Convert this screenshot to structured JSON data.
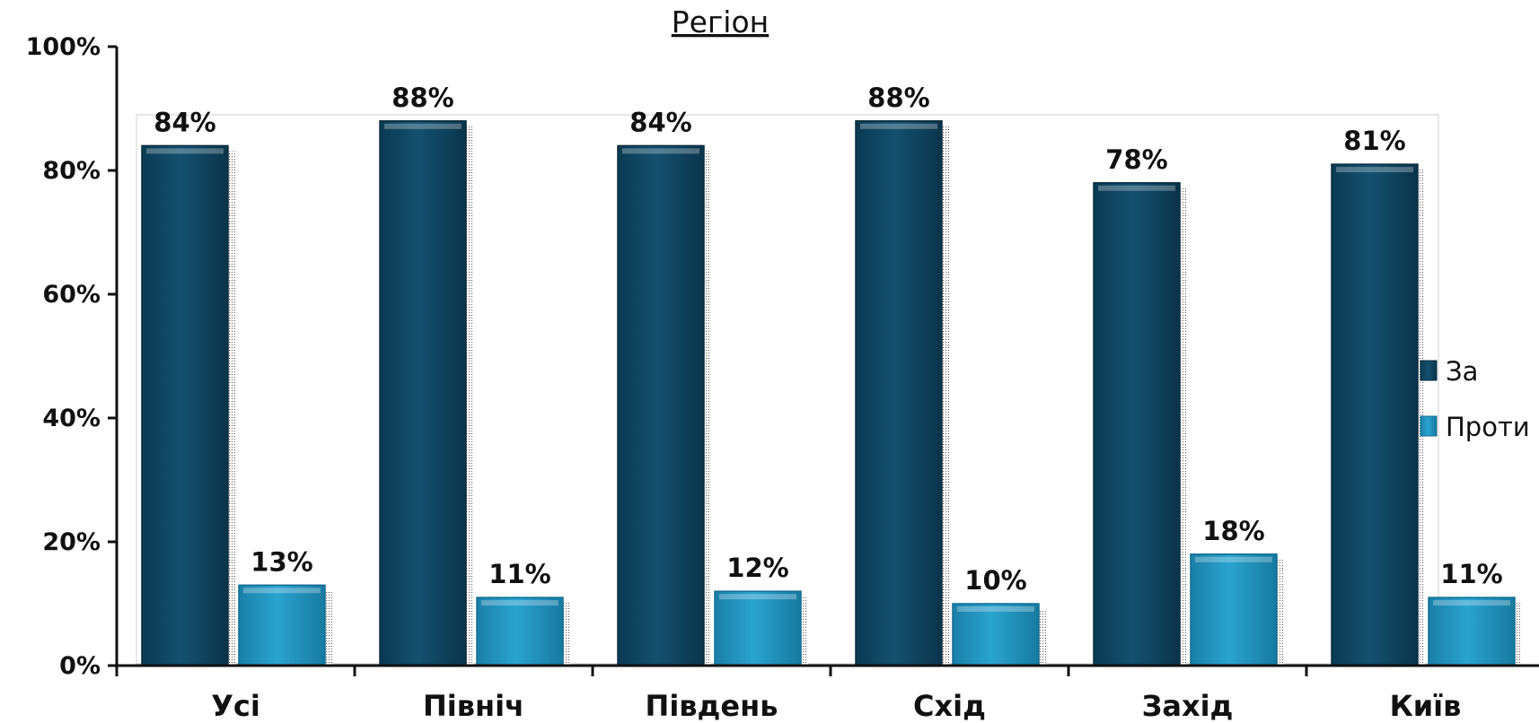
{
  "chart_data": {
    "type": "bar",
    "title": "Регіон",
    "categories": [
      "Усі",
      "Північ",
      "Південь",
      "Схід",
      "Захід",
      "Київ"
    ],
    "series": [
      {
        "name": "За",
        "values": [
          84,
          88,
          84,
          88,
          78,
          81
        ],
        "labels": [
          "84%",
          "88%",
          "84%",
          "88%",
          "78%",
          "81%"
        ],
        "color": "#0f4560"
      },
      {
        "name": "Проти",
        "values": [
          13,
          11,
          12,
          10,
          18,
          11
        ],
        "labels": [
          "13%",
          "11%",
          "12%",
          "10%",
          "18%",
          "11%"
        ],
        "color": "#1f8fb8"
      }
    ],
    "yticks": [
      "0%",
      "20%",
      "40%",
      "60%",
      "80%",
      "100%"
    ],
    "ylim": [
      0,
      100
    ],
    "xlabel": "",
    "ylabel": "",
    "grid": false,
    "legend": "right"
  }
}
